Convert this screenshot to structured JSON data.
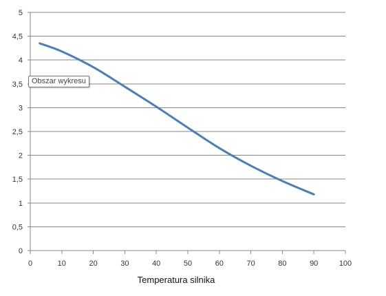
{
  "chart_data": {
    "type": "line",
    "xlabel": "Temperatura silnika",
    "ylabel": "",
    "xlim": [
      0,
      100
    ],
    "ylim": [
      0,
      5
    ],
    "x_ticks": [
      "0",
      "10",
      "20",
      "30",
      "40",
      "50",
      "60",
      "70",
      "80",
      "90",
      "100"
    ],
    "y_ticks": [
      "0",
      "0,5",
      "1",
      "1,5",
      "2",
      "2,5",
      "3",
      "3,5",
      "4",
      "4,5",
      "5"
    ],
    "grid": "horizontal",
    "legend": "none",
    "series": [
      {
        "color": "#4a7ebb",
        "x": [
          3,
          10,
          20,
          30,
          40,
          50,
          60,
          70,
          80,
          90
        ],
        "y": [
          4.35,
          4.18,
          3.85,
          3.44,
          3.02,
          2.58,
          2.15,
          1.78,
          1.46,
          1.18
        ]
      }
    ]
  },
  "tooltip": {
    "text": "Obszar wykresu"
  }
}
